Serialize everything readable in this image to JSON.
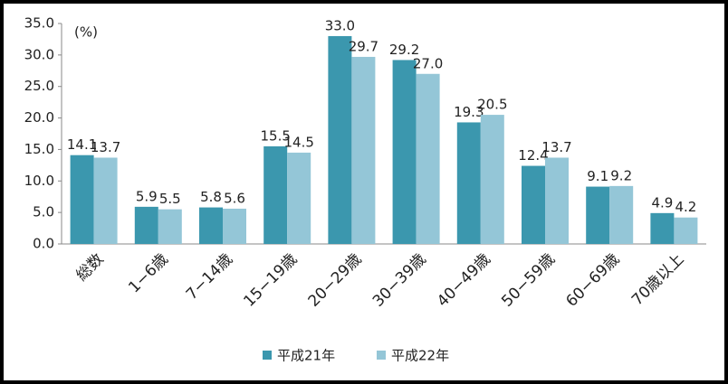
{
  "chart_data": {
    "type": "bar",
    "annotation": "(%)",
    "categories": [
      "総数",
      "1−6歳",
      "7−14歳",
      "15−19歳",
      "20−29歳",
      "30−39歳",
      "40−49歳",
      "50−59歳",
      "60−69歳",
      "70歳以上"
    ],
    "series": [
      {
        "name": "平成21年",
        "color": "#3b97ae",
        "values": [
          14.1,
          5.9,
          5.8,
          15.5,
          33.0,
          29.2,
          19.3,
          12.4,
          9.1,
          4.9
        ],
        "value_labels": [
          "14.1",
          "5.9",
          "5.8",
          "15.5",
          "33.0",
          "29.2",
          "19.3",
          "12.4",
          "9.1",
          "4.9"
        ]
      },
      {
        "name": "平成22年",
        "color": "#94c6d7",
        "values": [
          13.7,
          5.5,
          5.6,
          14.5,
          29.7,
          27.0,
          20.5,
          13.7,
          9.2,
          4.2
        ],
        "value_labels": [
          "13.7",
          "5.5",
          "5.6",
          "14.5",
          "29.7",
          "27.0",
          "20.5",
          "13.7",
          "9.2",
          "4.2"
        ]
      }
    ],
    "ylim": [
      0,
      35
    ],
    "yticks": [
      {
        "value": 0,
        "label": "0.0"
      },
      {
        "value": 5,
        "label": "5.0"
      },
      {
        "value": 10,
        "label": "10.0"
      },
      {
        "value": 15,
        "label": "15.0"
      },
      {
        "value": 20,
        "label": "20.0"
      },
      {
        "value": 25,
        "label": "25.0"
      },
      {
        "value": 30,
        "label": "30.0"
      },
      {
        "value": 35,
        "label": "35.0"
      }
    ],
    "legend": "bottom"
  }
}
